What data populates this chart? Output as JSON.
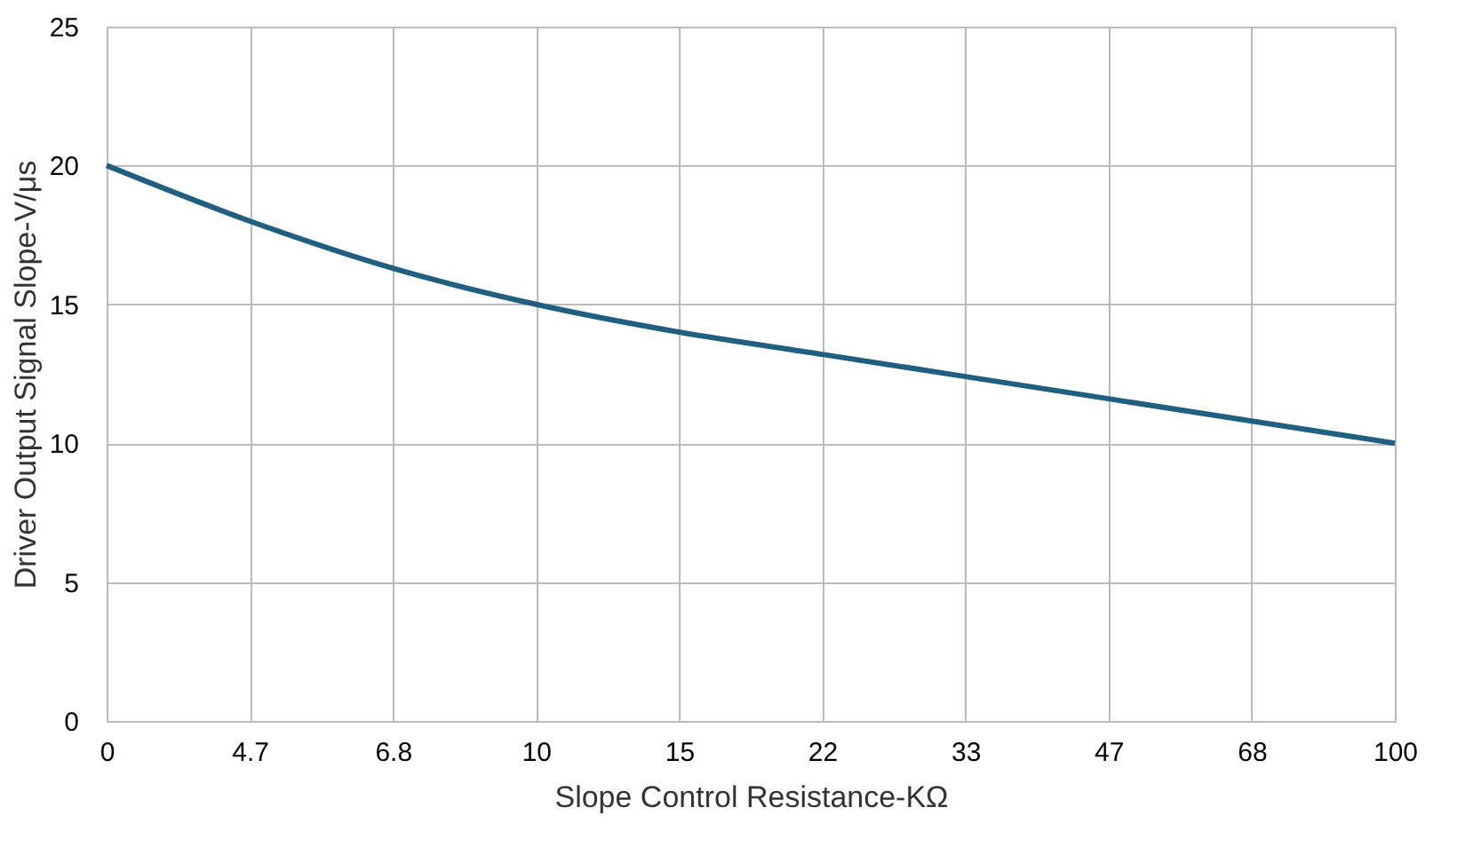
{
  "chart_data": {
    "type": "line",
    "xlabel": "Slope Control Resistance-KΩ",
    "ylabel": "Driver Output Signal Slope-V/μs",
    "categories": [
      "0",
      "4.7",
      "6.8",
      "10",
      "15",
      "22",
      "33",
      "47",
      "68",
      "100"
    ],
    "series": [
      {
        "color": "#1f5f7f",
        "values": [
          20,
          18,
          16.3,
          15,
          14,
          13.2,
          12.4,
          11.6,
          10.8,
          10
        ]
      }
    ],
    "ylim": [
      0,
      25
    ],
    "yticks": [
      0,
      5,
      10,
      15,
      20,
      25
    ],
    "grid": true,
    "marker": "none",
    "line_style": "solid"
  }
}
